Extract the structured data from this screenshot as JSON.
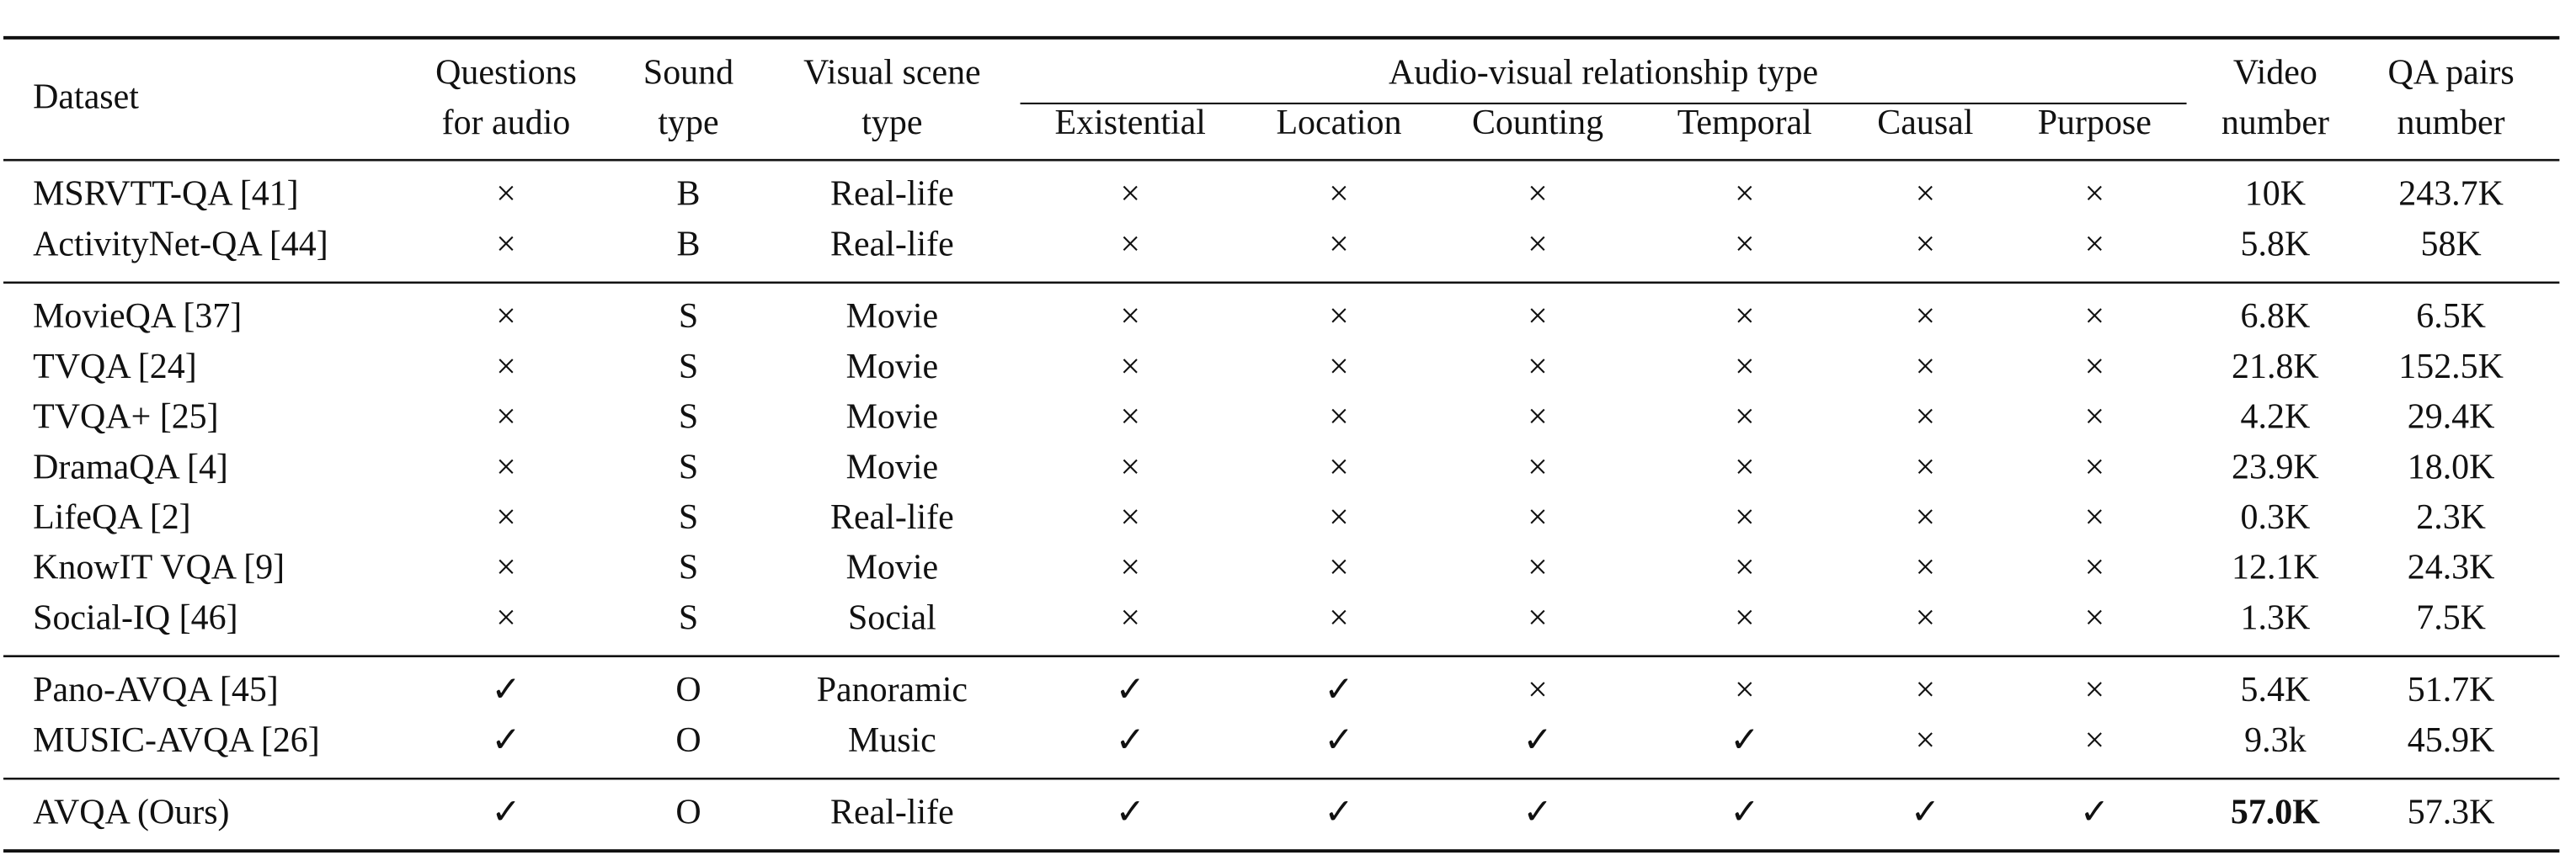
{
  "table": {
    "header": {
      "columns": [
        [
          "Dataset"
        ],
        [
          "Questions",
          "for audio"
        ],
        [
          "Sound",
          "type"
        ],
        [
          "Visual scene",
          "type"
        ]
      ],
      "group": "Audio-visual relationship type",
      "subcolumns": [
        "Existential",
        "Location",
        "Counting",
        "Temporal",
        "Causal",
        "Purpose"
      ],
      "tail_columns": [
        [
          "Video",
          "number"
        ],
        [
          "QA pairs",
          "number"
        ]
      ]
    },
    "groups": [
      [
        [
          "MSRVTT-QA [41]",
          "×",
          "B",
          "Real-life",
          "×",
          "×",
          "×",
          "×",
          "×",
          "×",
          "10K",
          "243.7K"
        ],
        [
          "ActivityNet-QA [44]",
          "×",
          "B",
          "Real-life",
          "×",
          "×",
          "×",
          "×",
          "×",
          "×",
          "5.8K",
          "58K"
        ]
      ],
      [
        [
          "MovieQA [37]",
          "×",
          "S",
          "Movie",
          "×",
          "×",
          "×",
          "×",
          "×",
          "×",
          "6.8K",
          "6.5K"
        ],
        [
          "TVQA [24]",
          "×",
          "S",
          "Movie",
          "×",
          "×",
          "×",
          "×",
          "×",
          "×",
          "21.8K",
          "152.5K"
        ],
        [
          "TVQA+ [25]",
          "×",
          "S",
          "Movie",
          "×",
          "×",
          "×",
          "×",
          "×",
          "×",
          "4.2K",
          "29.4K"
        ],
        [
          "DramaQA [4]",
          "×",
          "S",
          "Movie",
          "×",
          "×",
          "×",
          "×",
          "×",
          "×",
          "23.9K",
          "18.0K"
        ],
        [
          "LifeQA [2]",
          "×",
          "S",
          "Real-life",
          "×",
          "×",
          "×",
          "×",
          "×",
          "×",
          "0.3K",
          "2.3K"
        ],
        [
          "KnowIT VQA [9]",
          "×",
          "S",
          "Movie",
          "×",
          "×",
          "×",
          "×",
          "×",
          "×",
          "12.1K",
          "24.3K"
        ],
        [
          "Social-IQ [46]",
          "×",
          "S",
          "Social",
          "×",
          "×",
          "×",
          "×",
          "×",
          "×",
          "1.3K",
          "7.5K"
        ]
      ],
      [
        [
          "Pano-AVQA [45]",
          "✓",
          "O",
          "Panoramic",
          "✓",
          "✓",
          "×",
          "×",
          "×",
          "×",
          "5.4K",
          "51.7K"
        ],
        [
          "MUSIC-AVQA [26]",
          "✓",
          "O",
          "Music",
          "✓",
          "✓",
          "✓",
          "✓",
          "×",
          "×",
          "9.3k",
          "45.9K"
        ]
      ],
      [
        [
          "AVQA (Ours)",
          "✓",
          "O",
          "Real-life",
          "✓",
          "✓",
          "✓",
          "✓",
          "✓",
          "✓",
          "57.0K",
          "57.3K"
        ]
      ]
    ],
    "bold_cells": [
      [
        3,
        0,
        10
      ]
    ]
  }
}
